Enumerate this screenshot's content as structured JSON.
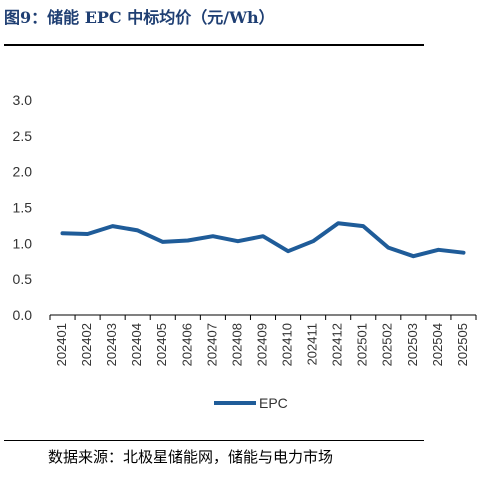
{
  "header": {
    "title": "图9：储能 EPC 中标均价（元/Wh）"
  },
  "footer": {
    "source": "数据来源：北极星储能网，储能与电力市场"
  },
  "colors": {
    "series": "#1f5c99",
    "title": "#1f3f73"
  },
  "chart_data": {
    "type": "line",
    "title": "",
    "xlabel": "",
    "ylabel": "",
    "x": [
      "202401",
      "202402",
      "202403",
      "202404",
      "202405",
      "202406",
      "202407",
      "202408",
      "202409",
      "202410",
      "202411",
      "202412",
      "202501",
      "202502",
      "202503",
      "202504",
      "202505"
    ],
    "series": [
      {
        "name": "EPC",
        "values": [
          1.14,
          1.13,
          1.24,
          1.18,
          1.02,
          1.04,
          1.1,
          1.03,
          1.1,
          0.89,
          1.03,
          1.28,
          1.24,
          0.94,
          0.82,
          0.91,
          0.87
        ]
      }
    ],
    "ylim": [
      0,
      3.0
    ],
    "yticks": [
      "0.0",
      "0.5",
      "1.0",
      "1.5",
      "2.0",
      "2.5",
      "3.0"
    ],
    "grid": false,
    "legend_position": "bottom"
  }
}
